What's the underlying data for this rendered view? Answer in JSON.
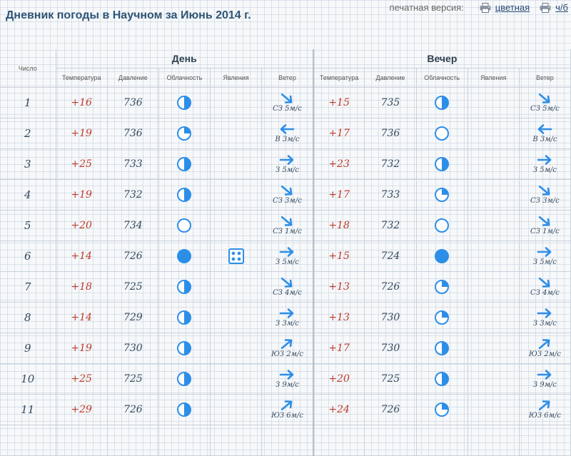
{
  "title": "Дневник погоды в Научном за Июнь 2014 г.",
  "print": {
    "label": "печатная версия:",
    "color_link": "цветная",
    "bw_link": "ч/б"
  },
  "columns": {
    "day_col": "Число",
    "day_group": "День",
    "evening_group": "Вечер",
    "temperature": "Температура",
    "pressure": "Давление",
    "cloudiness": "Облачность",
    "phenomena": "Явления",
    "wind": "Ветер"
  },
  "colors": {
    "accent": "#2d8ee8",
    "temp": "#c0392b",
    "title": "#2f5576",
    "grid": "#c9d2da"
  },
  "rows": [
    {
      "day": "1",
      "d_temp": "+16",
      "d_press": "736",
      "d_cloud": "half",
      "d_phen": "",
      "d_wind_dir": "se",
      "d_wind": "СЗ 5м/с",
      "e_temp": "+15",
      "e_press": "735",
      "e_cloud": "half",
      "e_phen": "",
      "e_wind_dir": "se",
      "e_wind": "СЗ 5м/с"
    },
    {
      "day": "2",
      "d_temp": "+19",
      "d_press": "736",
      "d_cloud": "quarter",
      "d_phen": "",
      "d_wind_dir": "w",
      "d_wind": "В 3м/с",
      "e_temp": "+17",
      "e_press": "736",
      "e_cloud": "clear",
      "e_phen": "",
      "e_wind_dir": "w",
      "e_wind": "В 3м/с"
    },
    {
      "day": "3",
      "d_temp": "+25",
      "d_press": "733",
      "d_cloud": "half",
      "d_phen": "",
      "d_wind_dir": "e",
      "d_wind": "З 5м/с",
      "e_temp": "+23",
      "e_press": "732",
      "e_cloud": "half",
      "e_phen": "",
      "e_wind_dir": "e",
      "e_wind": "З 5м/с"
    },
    {
      "day": "4",
      "d_temp": "+19",
      "d_press": "732",
      "d_cloud": "half",
      "d_phen": "",
      "d_wind_dir": "se",
      "d_wind": "СЗ 3м/с",
      "e_temp": "+17",
      "e_press": "733",
      "e_cloud": "quarter",
      "e_phen": "",
      "e_wind_dir": "se",
      "e_wind": "СЗ 3м/с"
    },
    {
      "day": "5",
      "d_temp": "+20",
      "d_press": "734",
      "d_cloud": "clear",
      "d_phen": "",
      "d_wind_dir": "se",
      "d_wind": "СЗ 1м/с",
      "e_temp": "+18",
      "e_press": "732",
      "e_cloud": "clear",
      "e_phen": "",
      "e_wind_dir": "se",
      "e_wind": "СЗ 1м/с"
    },
    {
      "day": "6",
      "d_temp": "+14",
      "d_press": "726",
      "d_cloud": "full",
      "d_phen": "dice",
      "d_wind_dir": "e",
      "d_wind": "З 5м/с",
      "e_temp": "+15",
      "e_press": "724",
      "e_cloud": "full",
      "e_phen": "",
      "e_wind_dir": "e",
      "e_wind": "З 5м/с"
    },
    {
      "day": "7",
      "d_temp": "+18",
      "d_press": "725",
      "d_cloud": "half",
      "d_phen": "",
      "d_wind_dir": "se",
      "d_wind": "СЗ 4м/с",
      "e_temp": "+13",
      "e_press": "726",
      "e_cloud": "quarter",
      "e_phen": "",
      "e_wind_dir": "se",
      "e_wind": "СЗ 4м/с"
    },
    {
      "day": "8",
      "d_temp": "+14",
      "d_press": "729",
      "d_cloud": "half",
      "d_phen": "",
      "d_wind_dir": "e",
      "d_wind": "З 3м/с",
      "e_temp": "+13",
      "e_press": "730",
      "e_cloud": "quarter",
      "e_phen": "",
      "e_wind_dir": "e",
      "e_wind": "З 3м/с"
    },
    {
      "day": "9",
      "d_temp": "+19",
      "d_press": "730",
      "d_cloud": "half",
      "d_phen": "",
      "d_wind_dir": "ne",
      "d_wind": "ЮЗ 2м/с",
      "e_temp": "+17",
      "e_press": "730",
      "e_cloud": "half",
      "e_phen": "",
      "e_wind_dir": "ne",
      "e_wind": "ЮЗ 2м/с"
    },
    {
      "day": "10",
      "d_temp": "+25",
      "d_press": "725",
      "d_cloud": "half",
      "d_phen": "",
      "d_wind_dir": "e",
      "d_wind": "З 9м/с",
      "e_temp": "+20",
      "e_press": "725",
      "e_cloud": "half",
      "e_phen": "",
      "e_wind_dir": "e",
      "e_wind": "З 9м/с"
    },
    {
      "day": "11",
      "d_temp": "+29",
      "d_press": "726",
      "d_cloud": "half",
      "d_phen": "",
      "d_wind_dir": "ne",
      "d_wind": "ЮЗ 6м/с",
      "e_temp": "+24",
      "e_press": "726",
      "e_cloud": "quarter",
      "e_phen": "",
      "e_wind_dir": "ne",
      "e_wind": "ЮЗ 6м/с"
    },
    {
      "day": "",
      "d_temp": "",
      "d_press": "",
      "d_cloud": "",
      "d_phen": "",
      "d_wind_dir": "",
      "d_wind": "",
      "e_temp": "",
      "e_press": "",
      "e_cloud": "",
      "e_phen": "",
      "e_wind_dir": "",
      "e_wind": ""
    }
  ]
}
